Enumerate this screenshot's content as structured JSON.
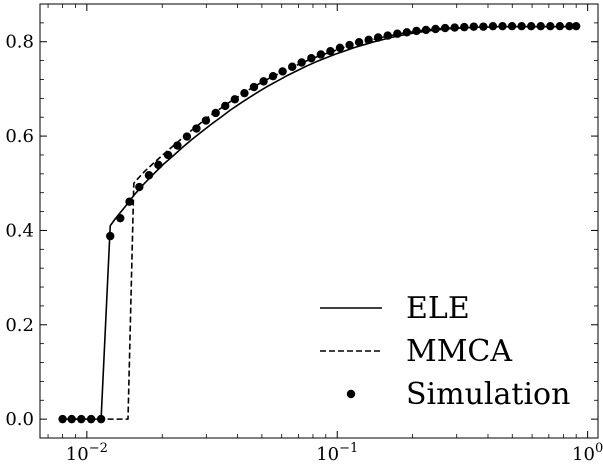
{
  "chart_data": {
    "type": "line",
    "title": "",
    "xlabel": "",
    "ylabel": "",
    "xscale": "log",
    "xlim": [
      0.0065,
      1.1
    ],
    "ylim": [
      -0.04,
      0.88
    ],
    "x_ticks": [
      {
        "value": 0.01,
        "base": "10",
        "exp": "−2"
      },
      {
        "value": 0.1,
        "base": "10",
        "exp": "−1"
      },
      {
        "value": 1,
        "base": "10",
        "exp": "0"
      }
    ],
    "y_ticks": [
      {
        "value": 0.0,
        "label": "0.0"
      },
      {
        "value": 0.2,
        "label": "0.2"
      },
      {
        "value": 0.4,
        "label": "0.4"
      },
      {
        "value": 0.6,
        "label": "0.6"
      },
      {
        "value": 0.8,
        "label": "0.8"
      }
    ],
    "legend_position": "lower-right",
    "series": [
      {
        "name": "ELE",
        "style": "solid",
        "color": "#000000",
        "x": [
          0.008,
          0.0087,
          0.0095,
          0.0104,
          0.0114,
          0.0124,
          0.013,
          0.0142,
          0.0155,
          0.017,
          0.0185,
          0.0202,
          0.0221,
          0.0241,
          0.0263,
          0.0287,
          0.0314,
          0.0343,
          0.0374,
          0.0409,
          0.0446,
          0.0488,
          0.0533,
          0.0582,
          0.0635,
          0.0694,
          0.0758,
          0.0828,
          0.0904,
          0.0987,
          0.1078,
          0.1177,
          0.1286,
          0.1404,
          0.1534,
          0.1675,
          0.1829,
          0.1998,
          0.2182,
          0.2383,
          0.2602,
          0.2842,
          0.3104,
          0.339,
          0.3702,
          0.4043,
          0.4416,
          0.4822,
          0.5266,
          0.5751,
          0.6281,
          0.6859,
          0.7491,
          0.8181,
          0.9
        ],
        "y": [
          0,
          0,
          0,
          0,
          0,
          0.41,
          0.425,
          0.45,
          0.476,
          0.5,
          0.52,
          0.54,
          0.558,
          0.576,
          0.593,
          0.609,
          0.625,
          0.64,
          0.655,
          0.669,
          0.682,
          0.695,
          0.707,
          0.718,
          0.729,
          0.739,
          0.749,
          0.758,
          0.766,
          0.774,
          0.781,
          0.788,
          0.794,
          0.8,
          0.805,
          0.81,
          0.814,
          0.818,
          0.821,
          0.824,
          0.826,
          0.828,
          0.829,
          0.83,
          0.831,
          0.831,
          0.832,
          0.832,
          0.832,
          0.832,
          0.832,
          0.832,
          0.832,
          0.832,
          0.832
        ]
      },
      {
        "name": "MMCA",
        "style": "dashed",
        "color": "#000000",
        "x": [
          0.008,
          0.0087,
          0.0095,
          0.0104,
          0.0114,
          0.0124,
          0.0136,
          0.0146,
          0.0154,
          0.016,
          0.017,
          0.0185,
          0.0202,
          0.0221,
          0.0241,
          0.0263,
          0.0287,
          0.0314,
          0.0343,
          0.0374,
          0.0409,
          0.0446,
          0.0488,
          0.0533,
          0.0582,
          0.0635,
          0.0694,
          0.0758,
          0.0828,
          0.0904,
          0.0987,
          0.1078,
          0.1177,
          0.1286,
          0.1404,
          0.1534,
          0.1675,
          0.1829,
          0.1998,
          0.2182,
          0.2383,
          0.2602,
          0.2842,
          0.3104,
          0.339,
          0.3702,
          0.4043,
          0.4416,
          0.4822,
          0.5266,
          0.5751,
          0.6281,
          0.6859,
          0.7491,
          0.8181,
          0.9
        ],
        "y": [
          0,
          0,
          0,
          0,
          0,
          0,
          0,
          0,
          0.5,
          0.51,
          0.525,
          0.543,
          0.561,
          0.579,
          0.596,
          0.613,
          0.629,
          0.645,
          0.659,
          0.673,
          0.686,
          0.699,
          0.711,
          0.722,
          0.732,
          0.742,
          0.751,
          0.76,
          0.768,
          0.775,
          0.782,
          0.789,
          0.795,
          0.8,
          0.805,
          0.81,
          0.814,
          0.818,
          0.821,
          0.824,
          0.826,
          0.828,
          0.829,
          0.83,
          0.831,
          0.831,
          0.832,
          0.832,
          0.832,
          0.832,
          0.832,
          0.832,
          0.832,
          0.832,
          0.832,
          0.832
        ]
      },
      {
        "name": "Simulation",
        "style": "markers",
        "color": "#000000",
        "x": [
          0.008,
          0.0087,
          0.0095,
          0.0104,
          0.0114,
          0.0124,
          0.0136,
          0.0148,
          0.0162,
          0.0177,
          0.0193,
          0.0211,
          0.023,
          0.0251,
          0.0274,
          0.0299,
          0.0327,
          0.0357,
          0.039,
          0.0426,
          0.0465,
          0.0508,
          0.0554,
          0.0605,
          0.0661,
          0.0721,
          0.0788,
          0.086,
          0.0939,
          0.1025,
          0.112,
          0.1222,
          0.1335,
          0.1457,
          0.1591,
          0.1738,
          0.1897,
          0.2072,
          0.2262,
          0.247,
          0.2697,
          0.2945,
          0.3216,
          0.3511,
          0.3834,
          0.4186,
          0.4571,
          0.4991,
          0.545,
          0.5951,
          0.6498,
          0.7095,
          0.7747,
          0.8459,
          0.9
        ],
        "y": [
          0,
          0,
          0,
          0,
          0,
          0.388,
          0.426,
          0.461,
          0.492,
          0.517,
          0.539,
          0.56,
          0.58,
          0.599,
          0.616,
          0.633,
          0.649,
          0.664,
          0.678,
          0.691,
          0.704,
          0.716,
          0.727,
          0.737,
          0.747,
          0.756,
          0.765,
          0.773,
          0.78,
          0.787,
          0.793,
          0.799,
          0.804,
          0.809,
          0.813,
          0.817,
          0.82,
          0.823,
          0.825,
          0.827,
          0.829,
          0.83,
          0.831,
          0.832,
          0.832,
          0.833,
          0.833,
          0.833,
          0.833,
          0.833,
          0.833,
          0.833,
          0.833,
          0.833,
          0.833
        ]
      }
    ]
  }
}
